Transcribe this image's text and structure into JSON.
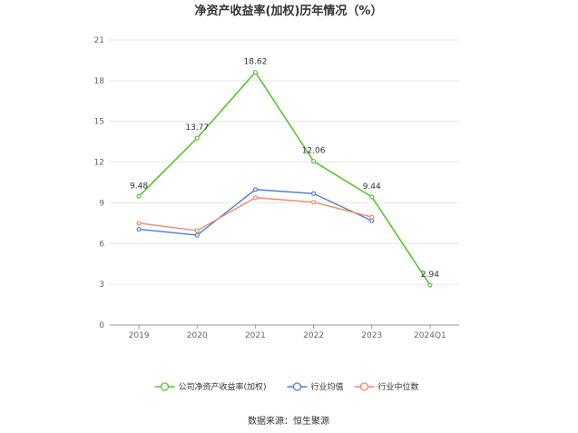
{
  "chart_data": {
    "type": "line",
    "title": "净资产收益率(加权)历年情况（%）",
    "categories": [
      "2019",
      "2020",
      "2021",
      "2022",
      "2023",
      "2024Q1"
    ],
    "ylim": [
      0,
      21
    ],
    "yticks": [
      0,
      3,
      6,
      9,
      12,
      15,
      18,
      21
    ],
    "grid": true,
    "legend_position": "bottom",
    "series": [
      {
        "name": "公司净资产收益率(加权)",
        "color": "#5ac531",
        "values": [
          9.48,
          13.77,
          18.62,
          12.06,
          9.44,
          2.94
        ],
        "labels": [
          "9.48",
          "13.77",
          "18.62",
          "12.06",
          "9.44",
          "2.94"
        ]
      },
      {
        "name": "行业均值",
        "color": "#4a7fd6",
        "values": [
          7.05,
          6.62,
          9.98,
          9.68,
          7.68,
          null
        ]
      },
      {
        "name": "行业中位数",
        "color": "#f08a6a",
        "values": [
          7.5,
          6.95,
          9.38,
          9.05,
          7.95,
          null
        ]
      }
    ]
  },
  "source": "数据来源：恒生聚源"
}
